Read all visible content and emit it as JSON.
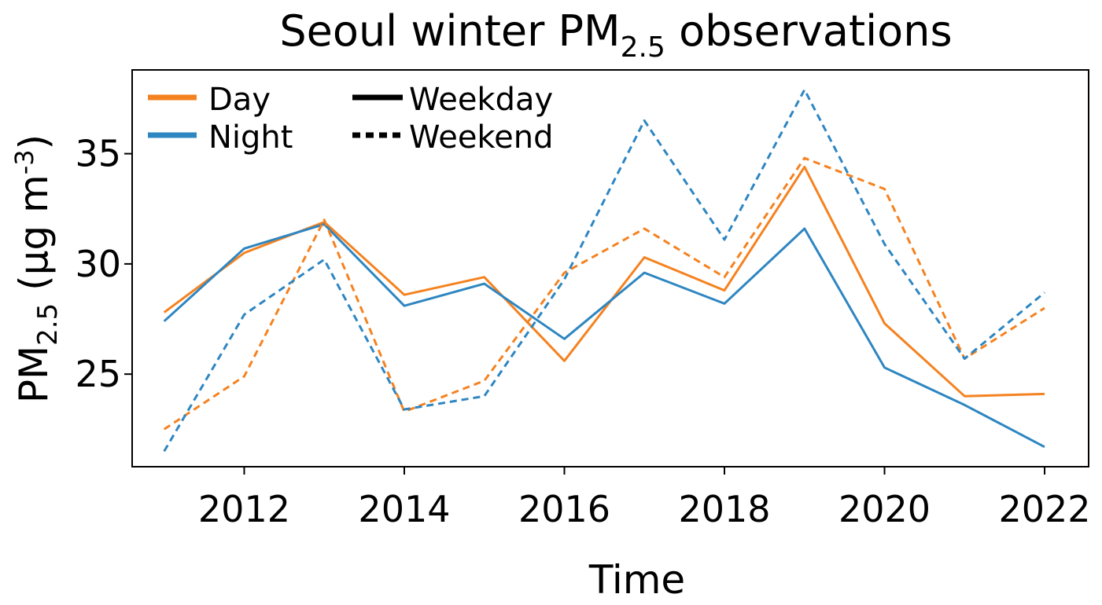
{
  "chart_data": {
    "type": "line",
    "title": "Seoul winter PM",
    "title_subscript": "2.5",
    "title_suffix": " observations",
    "xlabel": "Time",
    "ylabel_main": "PM",
    "ylabel_sub": "2.5",
    "ylabel_unit_prefix": " (µg m",
    "ylabel_unit_sup": "-3",
    "ylabel_unit_suffix": ")",
    "xlim": [
      2010.6,
      2022.55
    ],
    "ylim": [
      20.8,
      38.8
    ],
    "xticks": [
      2012,
      2014,
      2016,
      2018,
      2020,
      2022
    ],
    "xtick_labels": [
      "2012",
      "2014",
      "2016",
      "2018",
      "2020",
      "2022"
    ],
    "yticks": [
      25,
      30,
      35
    ],
    "ytick_labels": [
      "25",
      "30",
      "35"
    ],
    "grid": false,
    "legend_position": "top-left",
    "legend": {
      "colors": [
        {
          "label": "Day",
          "color": "#F58220"
        },
        {
          "label": "Night",
          "color": "#2E86C1"
        }
      ],
      "styles": [
        {
          "label": "Weekday",
          "dash": "solid"
        },
        {
          "label": "Weekend",
          "dash": "dashed"
        }
      ]
    },
    "x": [
      2011,
      2012,
      2013,
      2014,
      2015,
      2016,
      2017,
      2018,
      2019,
      2020,
      2021,
      2022
    ],
    "series": [
      {
        "name": "Day Weekday",
        "color": "#F58220",
        "dash": "solid",
        "values": [
          27.8,
          30.5,
          31.9,
          28.6,
          29.4,
          25.6,
          30.3,
          28.8,
          34.4,
          27.3,
          24.0,
          24.1
        ]
      },
      {
        "name": "Night Weekday",
        "color": "#2E86C1",
        "dash": "solid",
        "values": [
          27.4,
          30.7,
          31.8,
          28.1,
          29.1,
          26.6,
          29.6,
          28.2,
          31.6,
          25.3,
          23.6,
          21.7
        ]
      },
      {
        "name": "Day Weekend",
        "color": "#F58220",
        "dash": "dashed",
        "values": [
          22.5,
          24.9,
          32.0,
          23.3,
          24.7,
          29.6,
          31.6,
          29.4,
          34.8,
          33.4,
          25.7,
          28.0
        ]
      },
      {
        "name": "Night Weekend",
        "color": "#2E86C1",
        "dash": "dashed",
        "values": [
          21.5,
          27.7,
          30.2,
          23.4,
          24.0,
          29.3,
          36.5,
          31.1,
          37.9,
          30.9,
          25.7,
          28.7
        ]
      }
    ]
  }
}
